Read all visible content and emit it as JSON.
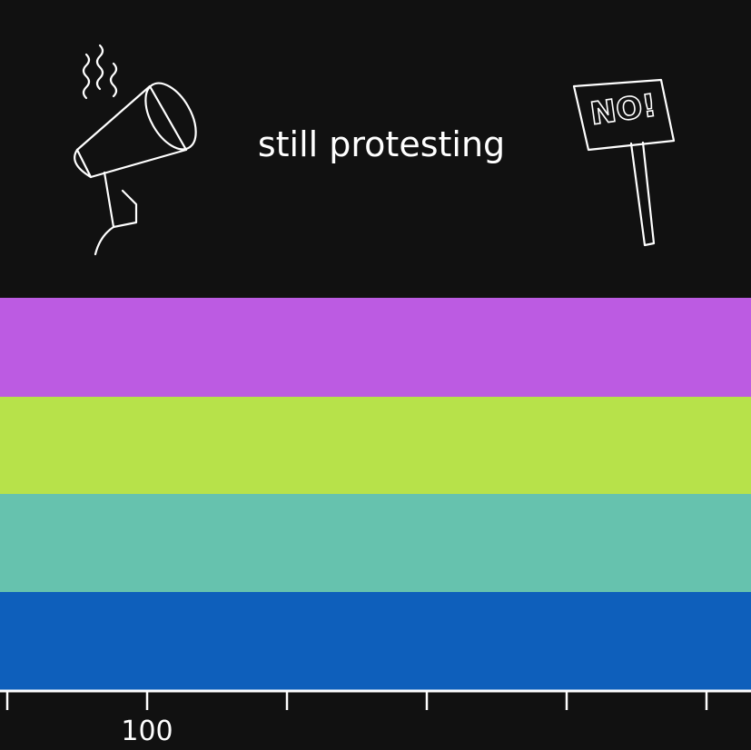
{
  "caption": "still protesting",
  "sign": "NO!",
  "axis": {
    "label": "100"
  }
}
